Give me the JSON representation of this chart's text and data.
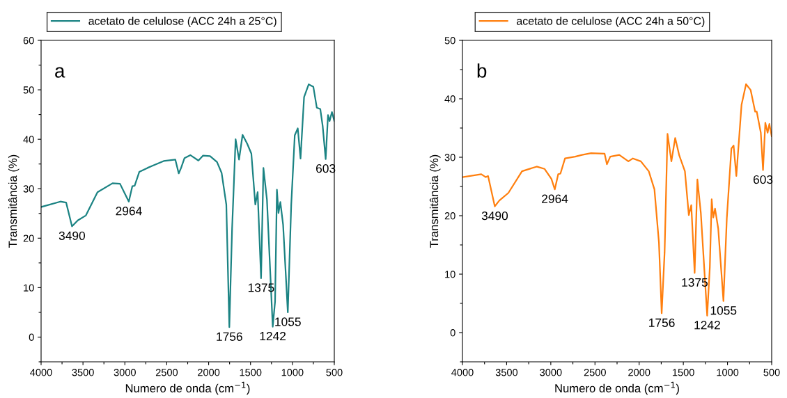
{
  "chart_data": [
    {
      "type": "line",
      "xlabel": "Numero de onda (cm$^{−1}$)",
      "ylabel": "Transmitância (%)",
      "legend": "top",
      "grid": false,
      "xlim": [
        4000,
        500
      ],
      "xticks": [
        4000,
        {
          "value": 3750,
          "label": null
        },
        3500,
        {
          "value": 3250,
          "label": null
        },
        3000,
        {
          "value": 2750,
          "label": null
        },
        2500,
        {
          "value": 2250,
          "label": null
        },
        2000,
        {
          "value": 1750,
          "label": null
        },
        1500,
        {
          "value": 1250,
          "label": null
        },
        1000,
        {
          "value": 750,
          "label": null
        },
        500
      ],
      "ylim": [
        -5,
        60
      ],
      "yticks": [
        {
          "value": -5,
          "label": null
        },
        0,
        {
          "value": 5,
          "label": null
        },
        10,
        {
          "value": 15,
          "label": null
        },
        20,
        {
          "value": 25,
          "label": null
        },
        30,
        {
          "value": 35,
          "label": null
        },
        40,
        {
          "value": 45,
          "label": null
        },
        50,
        {
          "value": 55,
          "label": null
        },
        60
      ],
      "annotations": [
        "a",
        {
          "text": "3490",
          "x": 3631,
          "y": 22.4
        },
        {
          "text": "2964",
          "x": 2953,
          "y": 27.4
        },
        {
          "text": "1756",
          "x": 1753,
          "y": 2.0
        },
        {
          "text": "1375",
          "x": 1374,
          "y": 11.9
        },
        {
          "text": "1242",
          "x": 1235,
          "y": 2.1
        },
        {
          "text": "1055",
          "x": 1055,
          "y": 5.0
        },
        {
          "text": "603",
          "x": 603,
          "y": 36.0
        }
      ],
      "series": [
        {
          "name": "acetato de celulose (ACC 24h a 25°C)",
          "color": "#1b8383",
          "x": [
            4000,
            3770,
            3701,
            3631,
            3562,
            3465,
            3327,
            3147,
            3058,
            2994,
            2953,
            2911,
            2883,
            2828,
            2731,
            2676,
            2537,
            2398,
            2357,
            2329,
            2288,
            2219,
            2122,
            2066,
            1983,
            1900,
            1845,
            1789,
            1753,
            1720,
            1678,
            1637,
            1595,
            1540,
            1490,
            1443,
            1415,
            1374,
            1346,
            1304,
            1235,
            1207,
            1185,
            1166,
            1144,
            1111,
            1055,
            1014,
            972,
            936,
            903,
            861,
            806,
            750,
            709,
            667,
            639,
            603,
            575,
            556,
            528,
            500
          ],
          "values": [
            26.3,
            27.4,
            27.2,
            22.4,
            23.6,
            24.6,
            29.3,
            31.1,
            31.0,
            28.8,
            27.4,
            30.5,
            30.6,
            33.4,
            34.2,
            34.6,
            35.6,
            35.9,
            33.1,
            34.2,
            36.2,
            36.8,
            35.7,
            36.7,
            36.6,
            35.4,
            33.2,
            26.8,
            2.0,
            21.9,
            40.0,
            35.9,
            40.9,
            39.1,
            37.1,
            26.8,
            29.3,
            11.9,
            34.2,
            27.8,
            2.1,
            7.2,
            29.8,
            25.1,
            27.3,
            22.7,
            5.0,
            26.8,
            40.8,
            42.2,
            36.1,
            48.5,
            51.1,
            50.6,
            46.4,
            46.1,
            42.7,
            36.0,
            44.9,
            43.7,
            45.5,
            43.7
          ]
        }
      ]
    },
    {
      "type": "line",
      "xlabel": "Numero de onda (cm$^{−1}$)",
      "ylabel": "Transmitância (%)",
      "legend": "top",
      "grid": false,
      "xlim": [
        4000,
        500
      ],
      "xticks": [
        4000,
        {
          "value": 3750,
          "label": null
        },
        3500,
        {
          "value": 3250,
          "label": null
        },
        3000,
        {
          "value": 2750,
          "label": null
        },
        2500,
        {
          "value": 2250,
          "label": null
        },
        2000,
        {
          "value": 1750,
          "label": null
        },
        1500,
        {
          "value": 1250,
          "label": null
        },
        1000,
        {
          "value": 750,
          "label": null
        },
        500
      ],
      "ylim": [
        -5,
        50
      ],
      "yticks": [
        {
          "value": -5,
          "label": null
        },
        0,
        {
          "value": 5,
          "label": null
        },
        10,
        {
          "value": 15,
          "label": null
        },
        20,
        {
          "value": 25,
          "label": null
        },
        30,
        {
          "value": 35,
          "label": null
        },
        40,
        {
          "value": 45,
          "label": null
        },
        50
      ],
      "annotations": [
        "b",
        {
          "text": "3490",
          "x": 3634,
          "y": 21.6
        },
        {
          "text": "2964",
          "x": 2955,
          "y": 24.5
        },
        {
          "text": "1756",
          "x": 1745,
          "y": 3.3
        },
        {
          "text": "1375",
          "x": 1372,
          "y": 10.2
        },
        {
          "text": "1242",
          "x": 1230,
          "y": 2.9
        },
        {
          "text": "1055",
          "x": 1046,
          "y": 5.4
        },
        {
          "text": "603",
          "x": 598,
          "y": 27.8
        }
      ],
      "series": [
        {
          "name": "acetato de celulose (ACC 24h a 50°C)",
          "color": "#ff7f0e",
          "x": [
            4000,
            3787,
            3736,
            3710,
            3634,
            3582,
            3480,
            3326,
            3160,
            3070,
            2993,
            2955,
            2916,
            2891,
            2839,
            2724,
            2647,
            2545,
            2391,
            2365,
            2327,
            2225,
            2122,
            2071,
            1981,
            1891,
            1827,
            1776,
            1745,
            1712,
            1679,
            1635,
            1592,
            1546,
            1482,
            1438,
            1410,
            1372,
            1341,
            1302,
            1230,
            1200,
            1179,
            1161,
            1141,
            1105,
            1046,
            1008,
            956,
            931,
            900,
            841,
            790,
            738,
            687,
            669,
            623,
            598,
            572,
            546,
            526,
            500
          ],
          "values": [
            26.6,
            27.1,
            26.6,
            26.8,
            21.6,
            22.6,
            23.9,
            27.6,
            28.4,
            28.0,
            26.3,
            24.5,
            27.1,
            27.2,
            29.8,
            30.1,
            30.4,
            30.7,
            30.6,
            28.8,
            30.1,
            30.4,
            29.3,
            29.8,
            29.3,
            27.6,
            24.5,
            15.4,
            3.3,
            13.7,
            34.0,
            29.3,
            33.3,
            30.3,
            27.6,
            20.1,
            21.8,
            10.2,
            26.2,
            20.5,
            2.9,
            11.2,
            22.8,
            19.7,
            21.2,
            17.8,
            5.4,
            19.5,
            31.5,
            32.0,
            26.8,
            39.0,
            42.5,
            41.5,
            37.8,
            37.8,
            34.2,
            27.8,
            35.9,
            34.2,
            35.7,
            33.6
          ]
        }
      ]
    }
  ]
}
